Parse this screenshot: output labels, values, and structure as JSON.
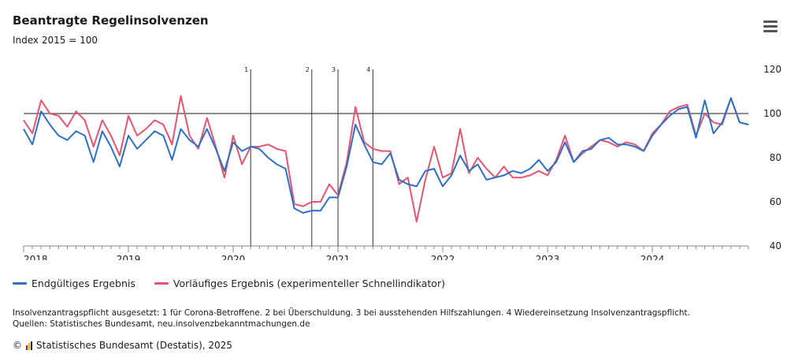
{
  "header": {
    "title": "Beantragte Regelinsolvenzen",
    "subtitle": "Index 2015 = 100"
  },
  "legend": {
    "final": "Endgültiges Ergebnis",
    "prelim": "Vorläufiges Ergebnis (experimenteller Schnellindikator)"
  },
  "notes": {
    "line1": "Insolvenzantragspflicht ausgesetzt: 1 für Corona-Betroffene. 2 bei Überschuldung. 3 bei ausstehenden Hilfszahlungen. 4 Wiedereinsetzung Insolvenzantragspflicht.",
    "line2": "Quellen: Statistisches Bundesamt, neu.insolvenzbekanntmachungen.de"
  },
  "credits": {
    "copyright": "©",
    "text": "Statistisches Bundesamt (Destatis), 2025"
  },
  "colors": {
    "final": "#2e6fc7",
    "prelim": "#e8546f",
    "refline": "#444444",
    "grid": "#cccccc"
  },
  "chart_data": {
    "type": "line",
    "title": "Beantragte Regelinsolvenzen",
    "subtitle": "Index 2015 = 100",
    "x_start": "2018-01",
    "x_end": "2024-12",
    "x_tick_labels": [
      "2018",
      "2019",
      "2020",
      "2021",
      "2022",
      "2023",
      "2024"
    ],
    "ylim": [
      40,
      120
    ],
    "y_ticks": [
      40,
      60,
      80,
      100,
      120
    ],
    "y_axis_side": "right",
    "reference_line": 100,
    "events": [
      {
        "label": "1",
        "date": "2020-03"
      },
      {
        "label": "2",
        "date": "2020-10"
      },
      {
        "label": "3",
        "date": "2021-01"
      },
      {
        "label": "4",
        "date": "2021-05"
      }
    ],
    "series": [
      {
        "name": "Endgültiges Ergebnis",
        "values": [
          93,
          86,
          101,
          95,
          90,
          88,
          92,
          90,
          78,
          92,
          85,
          76,
          90,
          84,
          88,
          92,
          90,
          79,
          93,
          88,
          85,
          93,
          84,
          74,
          87,
          83,
          85,
          84,
          80,
          77,
          75,
          57,
          55,
          56,
          56,
          62,
          62,
          76,
          95,
          86,
          78,
          77,
          82,
          70,
          68,
          67,
          74,
          75,
          67,
          72,
          81,
          74,
          77,
          70,
          71,
          72,
          74,
          73,
          75,
          79,
          74,
          78,
          87,
          78,
          83,
          84,
          88,
          89,
          86,
          86,
          85,
          83,
          90,
          95,
          99,
          102,
          103,
          89,
          106,
          91,
          96,
          107,
          96,
          95
        ],
        "end": "2024-12"
      },
      {
        "name": "Vorläufiges Ergebnis (experimenteller Schnellindikator)",
        "values": [
          97,
          91,
          106,
          100,
          99,
          94,
          101,
          97,
          85,
          97,
          90,
          81,
          99,
          90,
          93,
          97,
          95,
          86,
          108,
          90,
          84,
          98,
          85,
          71,
          90,
          77,
          85,
          85,
          86,
          84,
          83,
          59,
          58,
          60,
          60,
          68,
          63,
          78,
          103,
          87,
          84,
          83,
          83,
          68,
          71,
          51,
          70,
          85,
          71,
          73,
          93,
          73,
          80,
          75,
          71,
          76,
          71,
          71,
          72,
          74,
          72,
          79,
          90,
          78,
          82,
          85,
          88,
          87,
          85,
          87,
          86,
          83,
          91,
          95,
          101,
          103,
          104,
          90,
          100,
          96,
          95,
          107,
          96,
          95
        ],
        "end": "2024-12"
      }
    ],
    "reference_line_label": "",
    "grid": false,
    "legend_position": "bottom-left"
  }
}
